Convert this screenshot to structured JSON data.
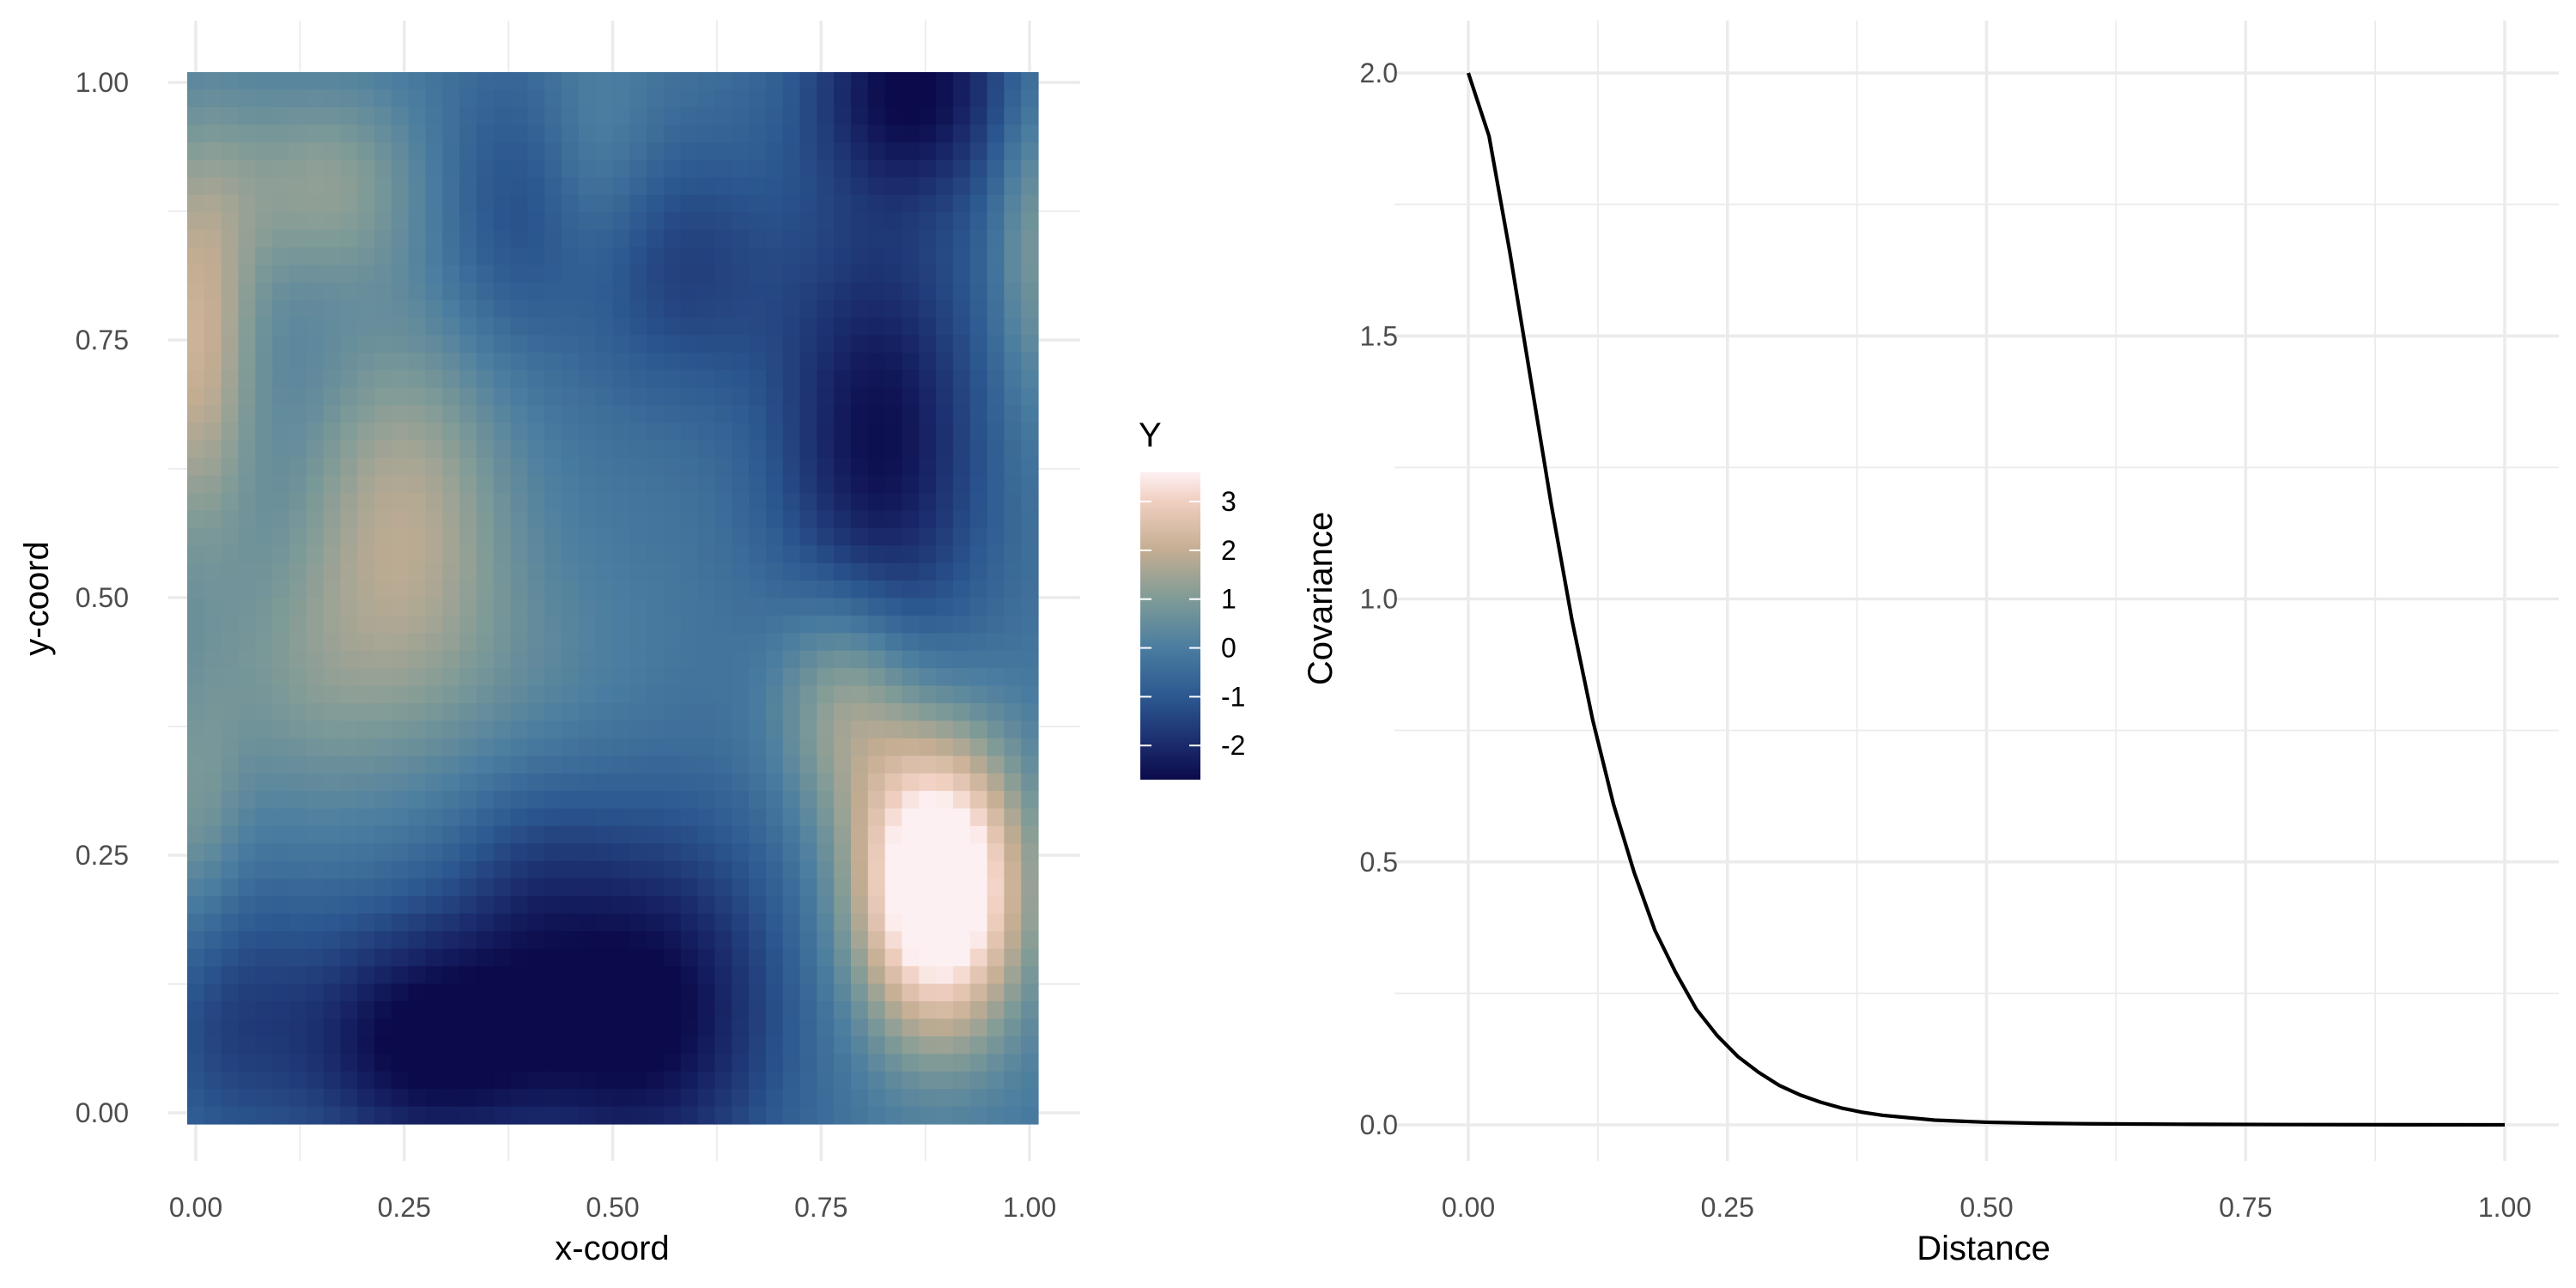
{
  "chart_data": [
    {
      "type": "heatmap",
      "title": "",
      "xlabel": "x-coord",
      "ylabel": "y-coord",
      "xlim": [
        0,
        1
      ],
      "ylim": [
        0,
        1
      ],
      "grid_resolution": [
        50,
        60
      ],
      "x_ticks": [
        {
          "value": 0,
          "label": "0.00"
        },
        {
          "value": 0.25,
          "label": "0.25"
        },
        {
          "value": 0.5,
          "label": "0.50"
        },
        {
          "value": 0.75,
          "label": "0.75"
        },
        {
          "value": 1,
          "label": "1.00"
        }
      ],
      "y_ticks": [
        {
          "value": 0,
          "label": "0.00"
        },
        {
          "value": 0.25,
          "label": "0.25"
        },
        {
          "value": 0.5,
          "label": "0.50"
        },
        {
          "value": 0.75,
          "label": "0.75"
        },
        {
          "value": 1,
          "label": "1.00"
        }
      ],
      "value_range": [
        -2.7,
        3.6
      ],
      "colorscale": [
        {
          "value": -2.7,
          "color": "#0b0a4a"
        },
        {
          "value": -2.0,
          "color": "#1a2a6b"
        },
        {
          "value": -1.0,
          "color": "#2c5890"
        },
        {
          "value": 0.0,
          "color": "#4a7da0"
        },
        {
          "value": 1.0,
          "color": "#7f9b97"
        },
        {
          "value": 2.0,
          "color": "#c4ad92"
        },
        {
          "value": 3.0,
          "color": "#f0cfc0"
        },
        {
          "value": 3.6,
          "color": "#fdf0f2"
        }
      ],
      "features": [
        {
          "x": 0.0,
          "y": 0.75,
          "sx": 0.05,
          "sy": 0.14,
          "amp": 2.3
        },
        {
          "x": 0.15,
          "y": 0.9,
          "sx": 0.09,
          "sy": 0.07,
          "amp": 1.4
        },
        {
          "x": 0.25,
          "y": 0.58,
          "sx": 0.09,
          "sy": 0.13,
          "amp": 1.9
        },
        {
          "x": 0.12,
          "y": 0.42,
          "sx": 0.09,
          "sy": 0.1,
          "amp": 0.9
        },
        {
          "x": 0.38,
          "y": 0.42,
          "sx": 0.12,
          "sy": 0.09,
          "amp": 0.5
        },
        {
          "x": 0.0,
          "y": 0.28,
          "sx": 0.04,
          "sy": 0.1,
          "amp": 1.0
        },
        {
          "x": 0.89,
          "y": 0.22,
          "sx": 0.07,
          "sy": 0.1,
          "amp": 5.4
        },
        {
          "x": 0.78,
          "y": 0.4,
          "sx": 0.06,
          "sy": 0.08,
          "amp": 1.9
        },
        {
          "x": 1.0,
          "y": 0.85,
          "sx": 0.03,
          "sy": 0.12,
          "amp": 1.2
        },
        {
          "x": 0.48,
          "y": 0.92,
          "sx": 0.05,
          "sy": 0.09,
          "amp": 0.7
        },
        {
          "x": 0.28,
          "y": 0.07,
          "sx": 0.12,
          "sy": 0.09,
          "amp": -2.7
        },
        {
          "x": 0.55,
          "y": 0.1,
          "sx": 0.11,
          "sy": 0.13,
          "amp": -2.5
        },
        {
          "x": 0.86,
          "y": 1.0,
          "sx": 0.09,
          "sy": 0.08,
          "amp": -2.4
        },
        {
          "x": 0.82,
          "y": 0.65,
          "sx": 0.09,
          "sy": 0.16,
          "amp": -2.4
        },
        {
          "x": 0.58,
          "y": 0.82,
          "sx": 0.09,
          "sy": 0.09,
          "amp": -1.3
        },
        {
          "x": 0.38,
          "y": 0.88,
          "sx": 0.07,
          "sy": 0.1,
          "amp": -1.0
        },
        {
          "x": 0.03,
          "y": 0.1,
          "sx": 0.07,
          "sy": 0.1,
          "amp": -1.1
        },
        {
          "x": 0.4,
          "y": 0.23,
          "sx": 0.07,
          "sy": 0.08,
          "amp": -0.8
        }
      ],
      "base_value": -0.2,
      "legend": {
        "title": "Y",
        "position": "right",
        "entries": [
          {
            "value": 3,
            "label": "3"
          },
          {
            "value": 2,
            "label": "2"
          },
          {
            "value": 1,
            "label": "1"
          },
          {
            "value": 0,
            "label": "0"
          },
          {
            "value": -1,
            "label": "-1"
          },
          {
            "value": -2,
            "label": "-2"
          }
        ]
      },
      "grid": true
    },
    {
      "type": "line",
      "title": "",
      "xlabel": "Distance",
      "ylabel": "Covariance",
      "xlim": [
        0,
        1
      ],
      "ylim": [
        0,
        2
      ],
      "x_ticks": [
        {
          "value": 0,
          "label": "0.00"
        },
        {
          "value": 0.25,
          "label": "0.25"
        },
        {
          "value": 0.5,
          "label": "0.50"
        },
        {
          "value": 0.75,
          "label": "0.75"
        },
        {
          "value": 1,
          "label": "1.00"
        }
      ],
      "y_ticks": [
        {
          "value": 0,
          "label": "0.0"
        },
        {
          "value": 0.5,
          "label": "0.5"
        },
        {
          "value": 1,
          "label": "1.0"
        },
        {
          "value": 1.5,
          "label": "1.5"
        },
        {
          "value": 2,
          "label": "2.0"
        }
      ],
      "line_color": "#000000",
      "x": [
        0,
        0.02,
        0.04,
        0.06,
        0.08,
        0.1,
        0.12,
        0.14,
        0.16,
        0.18,
        0.2,
        0.22,
        0.24,
        0.26,
        0.28,
        0.3,
        0.32,
        0.34,
        0.36,
        0.38,
        0.4,
        0.45,
        0.5,
        0.55,
        0.6,
        0.7,
        0.8,
        0.9,
        1.0
      ],
      "y": [
        2.0,
        1.88,
        1.66,
        1.42,
        1.18,
        0.96,
        0.77,
        0.61,
        0.48,
        0.37,
        0.29,
        0.22,
        0.17,
        0.13,
        0.1,
        0.075,
        0.057,
        0.043,
        0.032,
        0.024,
        0.018,
        0.009,
        0.005,
        0.003,
        0.002,
        0.001,
        0.0005,
        0.0002,
        0.0001
      ],
      "grid": true
    }
  ]
}
